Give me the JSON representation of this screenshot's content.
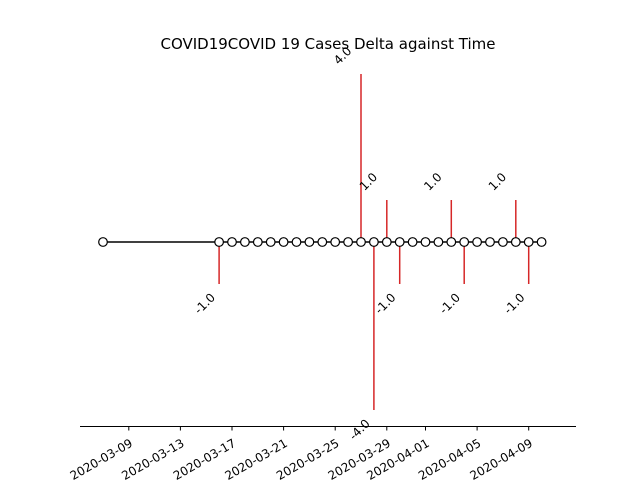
{
  "chart_data": {
    "type": "timeline",
    "title": "COVID19COVID 19 Cases Delta against Time",
    "xlabel": "",
    "ylabel": "",
    "x_tick_labels": [
      "2020-03-09",
      "2020-03-13",
      "2020-03-17",
      "2020-03-21",
      "2020-03-25",
      "2020-03-29",
      "2020-04-01",
      "2020-04-05",
      "2020-04-09"
    ],
    "ylim": [
      -4.4,
      4.4
    ],
    "grid": false,
    "colors": {
      "stem": "#d62728",
      "baseline": "#000000",
      "marker_fill": "#ffffff",
      "marker_edge": "#000000"
    },
    "points": [
      {
        "date": "2020-03-07",
        "value": 0
      },
      {
        "date": "2020-03-16",
        "value": -1.0
      },
      {
        "date": "2020-03-17",
        "value": 0
      },
      {
        "date": "2020-03-18",
        "value": 0
      },
      {
        "date": "2020-03-19",
        "value": 0
      },
      {
        "date": "2020-03-20",
        "value": 0
      },
      {
        "date": "2020-03-21",
        "value": 0
      },
      {
        "date": "2020-03-22",
        "value": 0
      },
      {
        "date": "2020-03-23",
        "value": 0
      },
      {
        "date": "2020-03-24",
        "value": 0
      },
      {
        "date": "2020-03-25",
        "value": 0
      },
      {
        "date": "2020-03-26",
        "value": 0
      },
      {
        "date": "2020-03-27",
        "value": 4.0
      },
      {
        "date": "2020-03-28",
        "value": -4.0
      },
      {
        "date": "2020-03-29",
        "value": 1.0
      },
      {
        "date": "2020-03-30",
        "value": -1.0
      },
      {
        "date": "2020-03-31",
        "value": 0
      },
      {
        "date": "2020-04-01",
        "value": 0
      },
      {
        "date": "2020-04-02",
        "value": 0
      },
      {
        "date": "2020-04-03",
        "value": 1.0
      },
      {
        "date": "2020-04-04",
        "value": -1.0
      },
      {
        "date": "2020-04-05",
        "value": 0
      },
      {
        "date": "2020-04-06",
        "value": 0
      },
      {
        "date": "2020-04-07",
        "value": 0
      },
      {
        "date": "2020-04-08",
        "value": 1.0
      },
      {
        "date": "2020-04-09",
        "value": -1.0
      },
      {
        "date": "2020-04-10",
        "value": 0
      }
    ]
  }
}
